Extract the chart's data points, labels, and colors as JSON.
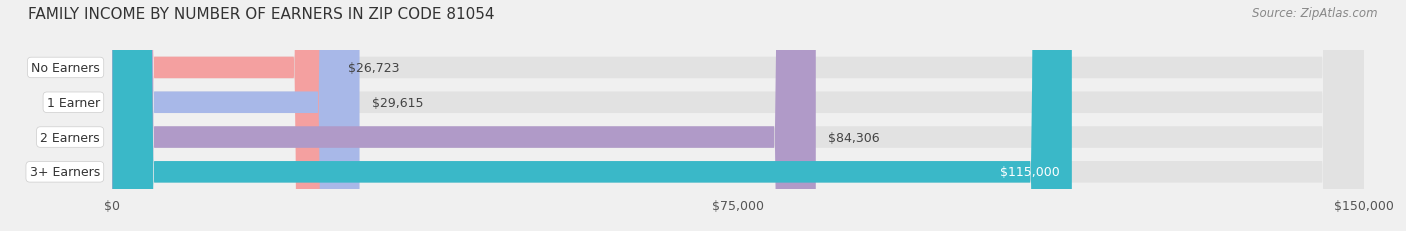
{
  "title": "FAMILY INCOME BY NUMBER OF EARNERS IN ZIP CODE 81054",
  "source": "Source: ZipAtlas.com",
  "categories": [
    "No Earners",
    "1 Earner",
    "2 Earners",
    "3+ Earners"
  ],
  "values": [
    26723,
    29615,
    84306,
    115000
  ],
  "bar_colors": [
    "#f4a0a0",
    "#a8b8e8",
    "#b09ac8",
    "#3ab8c8"
  ],
  "label_colors": [
    "#555555",
    "#555555",
    "#555555",
    "#ffffff"
  ],
  "value_labels": [
    "$26,723",
    "$29,615",
    "$84,306",
    "$115,000"
  ],
  "xlim": [
    0,
    150000
  ],
  "xticks": [
    0,
    75000,
    150000
  ],
  "xtick_labels": [
    "$0",
    "$75,000",
    "$150,000"
  ],
  "background_color": "#f0f0f0",
  "bar_bg_color": "#e2e2e2",
  "title_fontsize": 11,
  "source_fontsize": 8.5,
  "label_fontsize": 9,
  "value_fontsize": 9
}
